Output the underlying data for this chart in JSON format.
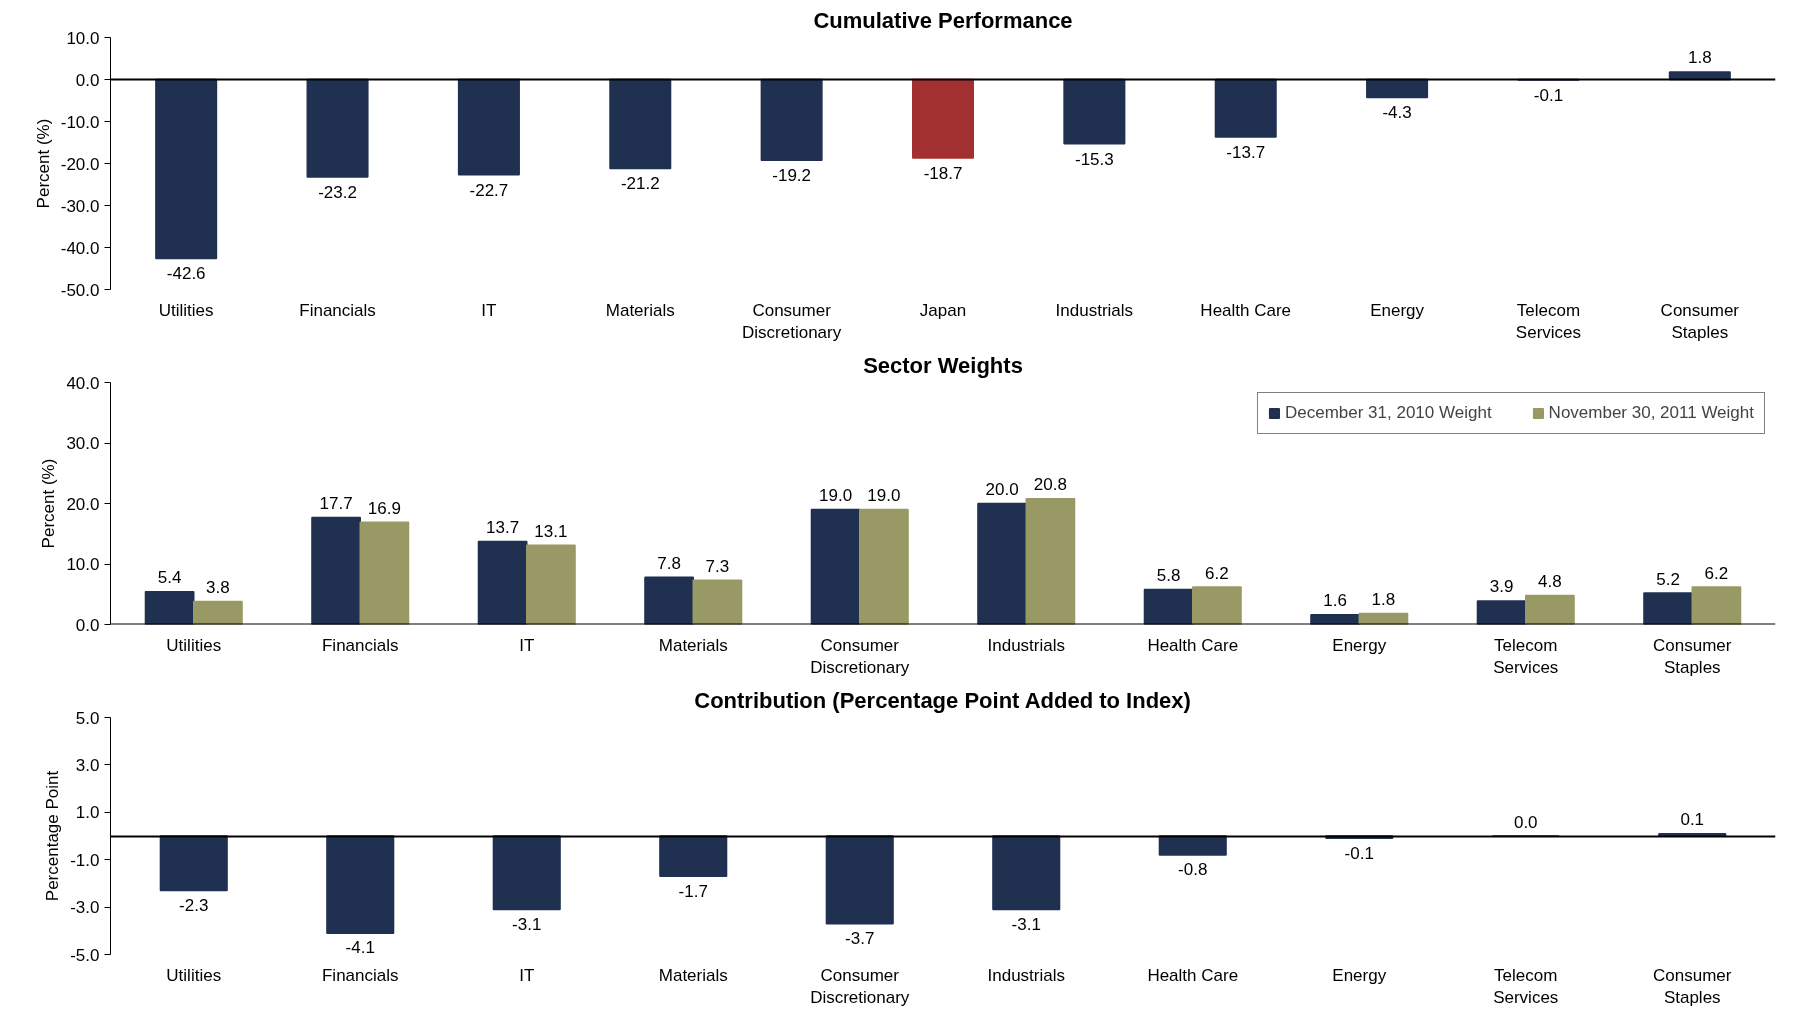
{
  "chart_data": [
    {
      "type": "bar",
      "title": "Cumulative Performance",
      "ylabel": "Percent (%)",
      "categories": [
        "Utilities",
        "Financials",
        "IT",
        "Materials",
        "Consumer\nDiscretionary",
        "Japan",
        "Industrials",
        "Health Care",
        "Energy",
        "Telecom\nServices",
        "Consumer\nStaples"
      ],
      "values": [
        -42.6,
        -23.2,
        -22.7,
        -21.2,
        -19.2,
        -18.7,
        -15.3,
        -13.7,
        -4.3,
        -0.1,
        1.8
      ],
      "value_labels": [
        "-42.6",
        "-23.2",
        "-22.7",
        "-21.2",
        "-19.2",
        "-18.7",
        "-15.3",
        "-13.7",
        "-4.3",
        "-0.1",
        "1.8"
      ],
      "colors": [
        "#1f3050",
        "#1f3050",
        "#1f3050",
        "#1f3050",
        "#1f3050",
        "#a33030",
        "#1f3050",
        "#1f3050",
        "#1f3050",
        "#1f3050",
        "#1f3050"
      ],
      "ylim": [
        -50,
        10
      ],
      "yticks": [
        {
          "value": -50,
          "label": "-50.0"
        },
        {
          "value": -40,
          "label": "-40.0"
        },
        {
          "value": -30,
          "label": "-30.0"
        },
        {
          "value": -20,
          "label": "-20.0"
        },
        {
          "value": -10,
          "label": "-10.0"
        },
        {
          "value": 0,
          "label": "0.0"
        },
        {
          "value": 10,
          "label": "10.0"
        }
      ]
    },
    {
      "type": "bar",
      "title": "Sector Weights",
      "ylabel": "Percent (%)",
      "categories": [
        "Utilities",
        "Financials",
        "IT",
        "Materials",
        "Consumer\nDiscretionary",
        "Industrials",
        "Health Care",
        "Energy",
        "Telecom\nServices",
        "Consumer\nStaples"
      ],
      "series": [
        {
          "name": "December 31, 2010 Weight",
          "color": "#1f3050",
          "values": [
            5.4,
            17.7,
            13.7,
            7.8,
            19.0,
            20.0,
            5.8,
            1.6,
            3.9,
            5.2
          ],
          "value_labels": [
            "5.4",
            "17.7",
            "13.7",
            "7.8",
            "19.0",
            "20.0",
            "5.8",
            "1.6",
            "3.9",
            "5.2"
          ]
        },
        {
          "name": "November 30, 2011 Weight",
          "color": "#999966",
          "values": [
            3.8,
            16.9,
            13.1,
            7.3,
            19.0,
            20.8,
            6.2,
            1.8,
            4.8,
            6.2
          ],
          "value_labels": [
            "3.8",
            "16.9",
            "13.1",
            "7.3",
            "19.0",
            "20.8",
            "6.2",
            "1.8",
            "4.8",
            "6.2"
          ]
        }
      ],
      "ylim": [
        0,
        40
      ],
      "yticks": [
        {
          "value": 0,
          "label": "0.0"
        },
        {
          "value": 10,
          "label": "10.0"
        },
        {
          "value": 20,
          "label": "20.0"
        },
        {
          "value": 30,
          "label": "30.0"
        },
        {
          "value": 40,
          "label": "40.0"
        }
      ],
      "legend": "top right"
    },
    {
      "type": "bar",
      "title": "Contribution (Percentage Point Added to Index)",
      "ylabel": "Percentage Point",
      "categories": [
        "Utilities",
        "Financials",
        "IT",
        "Materials",
        "Consumer\nDiscretionary",
        "Industrials",
        "Health Care",
        "Energy",
        "Telecom\nServices",
        "Consumer\nStaples"
      ],
      "values": [
        -2.3,
        -4.1,
        -3.1,
        -1.7,
        -3.7,
        -3.1,
        -0.8,
        -0.1,
        0.0,
        0.1
      ],
      "value_labels": [
        "-2.3",
        "-4.1",
        "-3.1",
        "-1.7",
        "-3.7",
        "-3.1",
        "-0.8",
        "-0.1",
        "0.0",
        "0.1"
      ],
      "colors": [
        "#1f3050",
        "#1f3050",
        "#1f3050",
        "#1f3050",
        "#1f3050",
        "#1f3050",
        "#1f3050",
        "#1f3050",
        "#1f3050",
        "#1f3050"
      ],
      "ylim": [
        -5,
        5
      ],
      "yticks": [
        {
          "value": -5,
          "label": "-5.0"
        },
        {
          "value": -3,
          "label": "-3.0"
        },
        {
          "value": -1,
          "label": "-1.0"
        },
        {
          "value": 1,
          "label": "1.0"
        },
        {
          "value": 3,
          "label": "3.0"
        },
        {
          "value": 5,
          "label": "5.0"
        }
      ]
    }
  ]
}
